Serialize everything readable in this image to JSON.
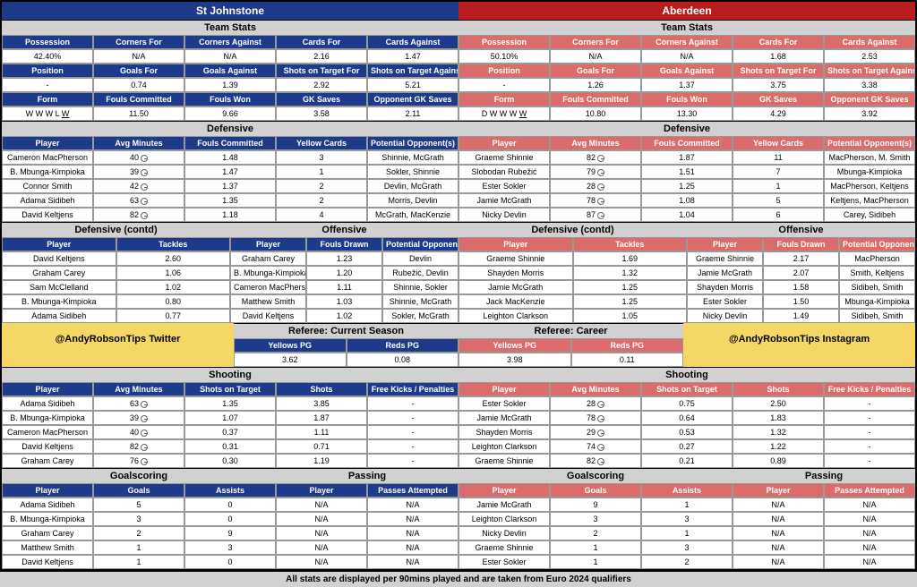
{
  "footer": "All stats are displayed per 90mins played and are taken from Euro 2024 qualifiers",
  "promo_left": "@AndyRobsonTips Twitter",
  "promo_right": "@AndyRobsonTips Instagram",
  "left": {
    "name": "St Johnstone",
    "color": "#1e3a8a",
    "team_stats_title": "Team Stats",
    "stats1_h": [
      "Possession",
      "Corners For",
      "Corners Against",
      "Cards For",
      "Cards Against"
    ],
    "stats1_v": [
      "42.40%",
      "N/A",
      "N/A",
      "2.16",
      "1.47"
    ],
    "stats2_h": [
      "Position",
      "Goals For",
      "Goals Against",
      "Shots on Target For",
      "Shots on Target Against"
    ],
    "stats2_v": [
      "-",
      "0.74",
      "1.39",
      "2.92",
      "5.21"
    ],
    "stats3_h": [
      "Form",
      "Fouls Committed",
      "Fouls Won",
      "GK Saves",
      "Opponent GK Saves"
    ],
    "stats3_v": [
      "W W W L W",
      "11.50",
      "9.66",
      "3.58",
      "2.11"
    ],
    "def_title": "Defensive",
    "def_h": [
      "Player",
      "Avg Minutes",
      "Fouls Committed",
      "Yellow Cards",
      "Potential Opponent(s)"
    ],
    "def": [
      [
        "Cameron MacPherson",
        "40",
        "1.48",
        "3",
        "Shinnie, McGrath"
      ],
      [
        "B. Mbunga-Kimpioka",
        "39",
        "1.47",
        "1",
        "Sokler, Shinnie"
      ],
      [
        "Connor Smith",
        "42",
        "1.37",
        "2",
        "Devlin, McGrath"
      ],
      [
        "Adama Sidibeh",
        "63",
        "1.35",
        "2",
        "Morris, Devlin"
      ],
      [
        "David Keltjens",
        "82",
        "1.18",
        "4",
        "McGrath, MacKenzie"
      ]
    ],
    "def2_title": "Defensive (contd)",
    "def2_h": [
      "Player",
      "Tackles"
    ],
    "def2": [
      [
        "David Keltjens",
        "2.60"
      ],
      [
        "Graham Carey",
        "1.06"
      ],
      [
        "Sam McClelland",
        "1.02"
      ],
      [
        "B. Mbunga-Kimpioka",
        "0.80"
      ],
      [
        "Adama Sidibeh",
        "0.77"
      ]
    ],
    "off_title": "Offensive",
    "off_h": [
      "Player",
      "Fouls Drawn",
      "Potential Opponent(s)"
    ],
    "off": [
      [
        "Graham Carey",
        "1.23",
        "Devlin"
      ],
      [
        "B. Mbunga-Kimpioka",
        "1.20",
        "Rubežić, Devlin"
      ],
      [
        "Cameron MacPherson",
        "1.11",
        "Shinnie, Sokler"
      ],
      [
        "Matthew Smith",
        "1.03",
        "Shinnie, McGrath"
      ],
      [
        "David Keltjens",
        "1.02",
        "Sokler, McGrath"
      ]
    ],
    "shoot_title": "Shooting",
    "shoot_h": [
      "Player",
      "Avg Minutes",
      "Shots on Target",
      "Shots",
      "Free Kicks / Penalties"
    ],
    "shoot": [
      [
        "Adama Sidibeh",
        "63",
        "1.35",
        "3.85",
        "-"
      ],
      [
        "B. Mbunga-Kimpioka",
        "39",
        "1.07",
        "1.87",
        "-"
      ],
      [
        "Cameron MacPherson",
        "40",
        "0.37",
        "1.11",
        "-"
      ],
      [
        "David Keltjens",
        "82",
        "0.31",
        "0.71",
        "-"
      ],
      [
        "Graham Carey",
        "76",
        "0.30",
        "1.19",
        "-"
      ]
    ],
    "goal_title": "Goalscoring",
    "goal_h": [
      "Player",
      "Goals",
      "Assists"
    ],
    "goal": [
      [
        "Adama Sidibeh",
        "5",
        "0"
      ],
      [
        "B. Mbunga-Kimpioka",
        "3",
        "0"
      ],
      [
        "Graham Carey",
        "2",
        "9"
      ],
      [
        "Matthew Smith",
        "1",
        "3"
      ],
      [
        "David Keltjens",
        "1",
        "0"
      ]
    ],
    "pass_title": "Passing",
    "pass_h": [
      "Player",
      "Passes Attempted"
    ],
    "pass": [
      [
        "N/A",
        "N/A"
      ],
      [
        "N/A",
        "N/A"
      ],
      [
        "N/A",
        "N/A"
      ],
      [
        "N/A",
        "N/A"
      ],
      [
        "N/A",
        "N/A"
      ]
    ]
  },
  "right": {
    "name": "Aberdeen",
    "color": "#b91c1c",
    "team_stats_title": "Team Stats",
    "stats1_h": [
      "Possession",
      "Corners For",
      "Corners Against",
      "Cards For",
      "Cards Against"
    ],
    "stats1_v": [
      "50.10%",
      "N/A",
      "N/A",
      "1.68",
      "2.53"
    ],
    "stats2_h": [
      "Position",
      "Goals For",
      "Goals Against",
      "Shots on Target For",
      "Shots on Target Against"
    ],
    "stats2_v": [
      "-",
      "1.26",
      "1.37",
      "3.75",
      "3.38"
    ],
    "stats3_h": [
      "Form",
      "Fouls Committed",
      "Fouls Won",
      "GK Saves",
      "Opponent GK Saves"
    ],
    "stats3_v": [
      "D W W W W",
      "10.80",
      "13.30",
      "4.29",
      "3.92"
    ],
    "def_title": "Defensive",
    "def_h": [
      "Player",
      "Avg Minutes",
      "Fouls Committed",
      "Yellow Cards",
      "Potential Opponent(s)"
    ],
    "def": [
      [
        "Graeme Shinnie",
        "82",
        "1.87",
        "11",
        "MacPherson, M. Smith"
      ],
      [
        "Slobodan Rubežić",
        "79",
        "1.51",
        "7",
        "Mbunga-Kimpioka"
      ],
      [
        "Ester Sokler",
        "28",
        "1.25",
        "1",
        "MacPherson, Keltjens"
      ],
      [
        "Jamie McGrath",
        "78",
        "1.08",
        "5",
        "Keltjens, MacPherson"
      ],
      [
        "Nicky Devlin",
        "87",
        "1.04",
        "6",
        "Carey, Sidibeh"
      ]
    ],
    "def2_title": "Defensive (contd)",
    "def2_h": [
      "Player",
      "Tackles"
    ],
    "def2": [
      [
        "Graeme Shinnie",
        "1.69"
      ],
      [
        "Shayden Morris",
        "1.32"
      ],
      [
        "Jamie McGrath",
        "1.25"
      ],
      [
        "Jack MacKenzie",
        "1.25"
      ],
      [
        "Leighton Clarkson",
        "1.05"
      ]
    ],
    "off_title": "Offensive",
    "off_h": [
      "Player",
      "Fouls Drawn",
      "Potential Opponent(s)"
    ],
    "off": [
      [
        "Graeme Shinnie",
        "2.17",
        "MacPherson"
      ],
      [
        "Jamie McGrath",
        "2.07",
        "Smith, Keltjens"
      ],
      [
        "Shayden Morris",
        "1.58",
        "Sidibeh, Smith"
      ],
      [
        "Ester Sokler",
        "1.50",
        "Mbunga-Kimpioka"
      ],
      [
        "Nicky Devlin",
        "1.49",
        "Sidibeh, Smith"
      ]
    ],
    "shoot_title": "Shooting",
    "shoot_h": [
      "Player",
      "Avg Minutes",
      "Shots on Target",
      "Shots",
      "Free Kicks / Penalties"
    ],
    "shoot": [
      [
        "Ester Sokler",
        "28",
        "0.75",
        "2.50",
        "-"
      ],
      [
        "Jamie McGrath",
        "78",
        "0.64",
        "1.83",
        "-"
      ],
      [
        "Shayden Morris",
        "29",
        "0.53",
        "1.32",
        "-"
      ],
      [
        "Leighton Clarkson",
        "74",
        "0.27",
        "1.22",
        "-"
      ],
      [
        "Graeme Shinnie",
        "82",
        "0.21",
        "0.89",
        "-"
      ]
    ],
    "goal_title": "Goalscoring",
    "goal_h": [
      "Player",
      "Goals",
      "Assists"
    ],
    "goal": [
      [
        "Jamie McGrath",
        "9",
        "1"
      ],
      [
        "Leighton Clarkson",
        "3",
        "3"
      ],
      [
        "Nicky Devlin",
        "2",
        "1"
      ],
      [
        "Graeme Shinnie",
        "1",
        "3"
      ],
      [
        "Ester Sokler",
        "1",
        "2"
      ]
    ],
    "pass_title": "Passing",
    "pass_h": [
      "Player",
      "Passes Attempted"
    ],
    "pass": [
      [
        "N/A",
        "N/A"
      ],
      [
        "N/A",
        "N/A"
      ],
      [
        "N/A",
        "N/A"
      ],
      [
        "N/A",
        "N/A"
      ],
      [
        "N/A",
        "N/A"
      ]
    ]
  },
  "ref": {
    "cs_title": "Referee: Current Season",
    "cs_h": [
      "Yellows PG",
      "Reds PG"
    ],
    "cs_v": [
      "3.62",
      "0.08"
    ],
    "car_title": "Referee: Career",
    "car_h": [
      "Yellows PG",
      "Reds PG"
    ],
    "car_v": [
      "3.98",
      "0.11"
    ]
  }
}
